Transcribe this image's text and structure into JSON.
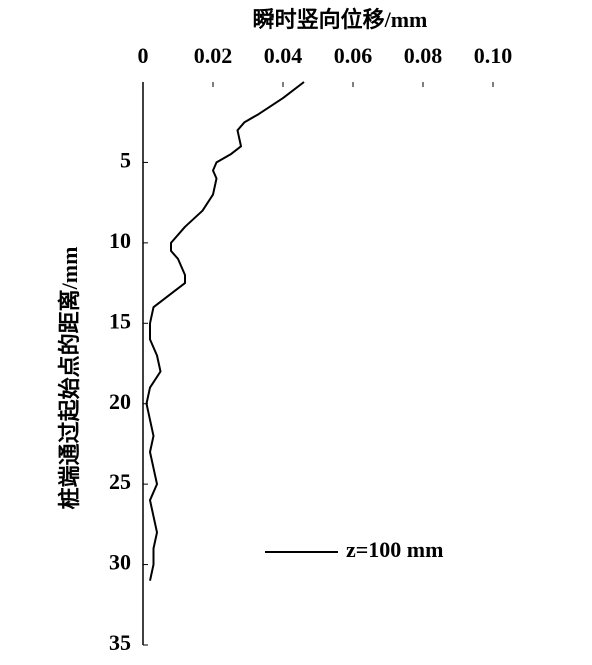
{
  "chart_data": {
    "type": "line",
    "x_label": "瞬时竖向位移/mm",
    "y_label": "桩端通过起始点的距离/mm",
    "xlim": [
      0,
      0.1
    ],
    "xticks": [
      0,
      0.02,
      0.04,
      0.06,
      0.08,
      {
        "value": 0.1,
        "label": "0.10"
      }
    ],
    "ylim": [
      0,
      35
    ],
    "yticks": [
      5,
      10,
      15,
      20,
      25,
      30,
      35
    ],
    "y_inverted": true,
    "legend": "bottom-right",
    "x": [
      0,
      1,
      2,
      2.5,
      3,
      4,
      4.5,
      5,
      5.5,
      6,
      7,
      8,
      9,
      10,
      10.5,
      11,
      12,
      12.5,
      13,
      14,
      15,
      16,
      17,
      18,
      19,
      20,
      21,
      22,
      23,
      24,
      25,
      26,
      27,
      28,
      29,
      30,
      31
    ],
    "series": [
      {
        "name": "z=100 mm",
        "color": "#000000",
        "values": [
          0.046,
          0.04,
          0.033,
          0.029,
          0.027,
          0.028,
          0.025,
          0.021,
          0.02,
          0.021,
          0.02,
          0.017,
          0.012,
          0.008,
          0.008,
          0.01,
          0.012,
          0.012,
          0.009,
          0.003,
          0.002,
          0.002,
          0.004,
          0.005,
          0.002,
          0.001,
          0.002,
          0.003,
          0.002,
          0.003,
          0.004,
          0.002,
          0.003,
          0.004,
          0.003,
          0.003,
          0.002
        ]
      }
    ]
  }
}
